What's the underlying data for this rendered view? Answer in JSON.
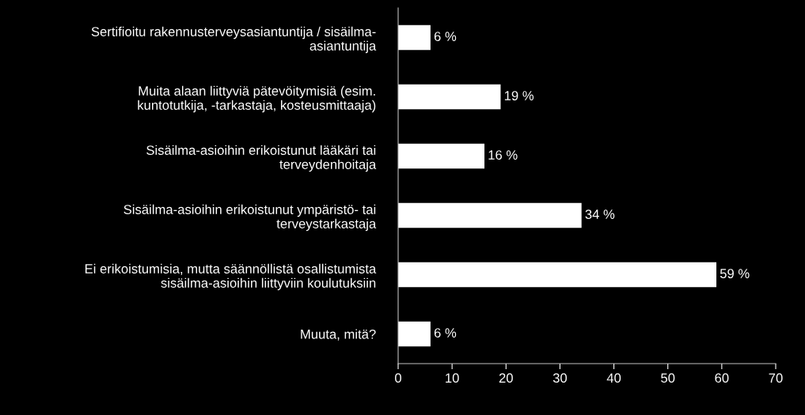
{
  "chart_data": {
    "type": "bar",
    "orientation": "horizontal",
    "categories": [
      "Sertifioitu rakennusterveysasiantuntija / sisäilma-\nasiantuntija",
      "Muita alaan liittyviä pätevöitymisiä (esim.\nkuntotutkija, -tarkastaja, kosteusmittaaja)",
      "Sisäilma-asioihin erikoistunut lääkäri tai\nterveydenhoitaja",
      "Sisäilma-asioihin erikoistunut ympäristö- tai\nterveystarkastaja",
      "Ei erikoistumisia, mutta säännöllistä osallistumista\nsisäilma-asioihin liittyviin koulutuksiin",
      "Muuta, mitä?"
    ],
    "values": [
      6,
      19,
      16,
      34,
      59,
      6
    ],
    "value_labels": [
      "6 %",
      "19 %",
      "16 %",
      "34 %",
      "59 %",
      "6 %"
    ],
    "color": "#ffffff",
    "xlim": [
      0,
      70
    ],
    "xticks": [
      0,
      10,
      20,
      30,
      40,
      50,
      60,
      70
    ],
    "grid": false,
    "legend": false
  }
}
